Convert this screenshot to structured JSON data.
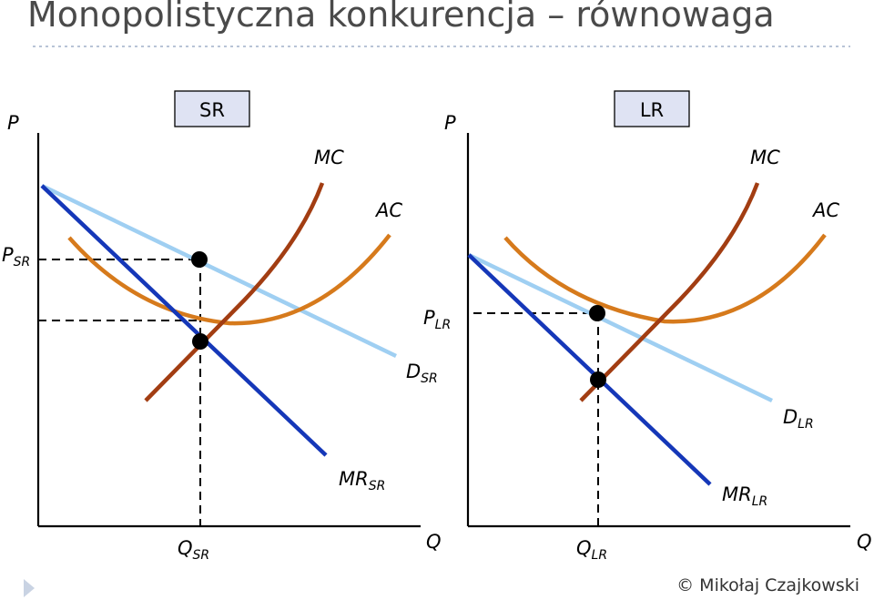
{
  "title": "Monopolistyczna konkurencja – równowaga",
  "footer": "© Mikołaj Czajkowski",
  "colors": {
    "title": "#4a4a4a",
    "divider": "#b8c4d6",
    "mc": "#a23d12",
    "ac": "#d67a1c",
    "demand": "#9fcff2",
    "mr": "#1537b8",
    "point": "#000000",
    "box_fill": "#dfe3f3",
    "nav_arrow": "#c9d3e3"
  },
  "panels": [
    {
      "id": "sr",
      "box_label": "SR",
      "y_axis_label": "P",
      "x_axis_label": "Q",
      "mc_label": "MC",
      "ac_label": "AC",
      "demand_label": {
        "main": "D",
        "sub": "SR"
      },
      "mr_label": {
        "main": "MR",
        "sub": "SR"
      },
      "price_label": {
        "main": "P",
        "sub": "SR"
      },
      "quantity_label": {
        "main": "Q",
        "sub": "SR"
      }
    },
    {
      "id": "lr",
      "box_label": "LR",
      "y_axis_label": "P",
      "x_axis_label": "Q",
      "mc_label": "MC",
      "ac_label": "AC",
      "demand_label": {
        "main": "D",
        "sub": "LR"
      },
      "mr_label": {
        "main": "MR",
        "sub": "LR"
      },
      "price_label": {
        "main": "P",
        "sub": "LR"
      },
      "quantity_label": {
        "main": "Q",
        "sub": "LR"
      }
    }
  ]
}
